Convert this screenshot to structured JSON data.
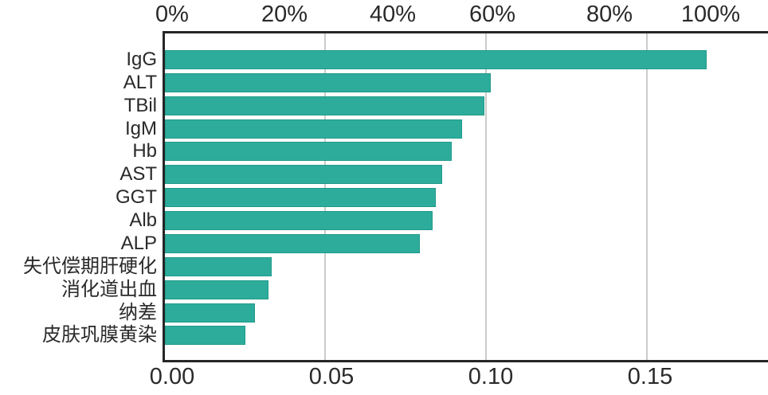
{
  "chart_data": {
    "type": "bar",
    "orientation": "horizontal",
    "title": "",
    "xlabel": "",
    "ylabel": "",
    "categories": [
      "IgG",
      "ALT",
      "TBil",
      "IgM",
      "Hb",
      "AST",
      "GGT",
      "Alb",
      "ALP",
      "失代偿期肝硬化",
      "消化道出血",
      "纳差",
      "皮肤巩膜黄染"
    ],
    "values": [
      0.168,
      0.101,
      0.099,
      0.092,
      0.089,
      0.086,
      0.084,
      0.083,
      0.079,
      0.033,
      0.032,
      0.028,
      0.025
    ],
    "top_axis": {
      "tick_labels": [
        "0%",
        "20%",
        "40%",
        "60%",
        "80%",
        "100%"
      ],
      "tick_values": [
        0,
        20,
        40,
        60,
        80,
        100
      ],
      "unit": "percent"
    },
    "bottom_axis": {
      "tick_labels": [
        "0.00",
        "0.05",
        "0.10",
        "0.15"
      ],
      "tick_values": [
        0,
        0.05,
        0.1,
        0.15
      ],
      "xlim": [
        0,
        0.1875
      ]
    },
    "grid": "vertical",
    "legend": "none",
    "colors": {
      "bar_fill": "#2dac9c",
      "bar_edge": "#1f9a89",
      "axis": "#262626",
      "gridline": "#cbcbcb",
      "text": "#2a2a2a"
    }
  }
}
